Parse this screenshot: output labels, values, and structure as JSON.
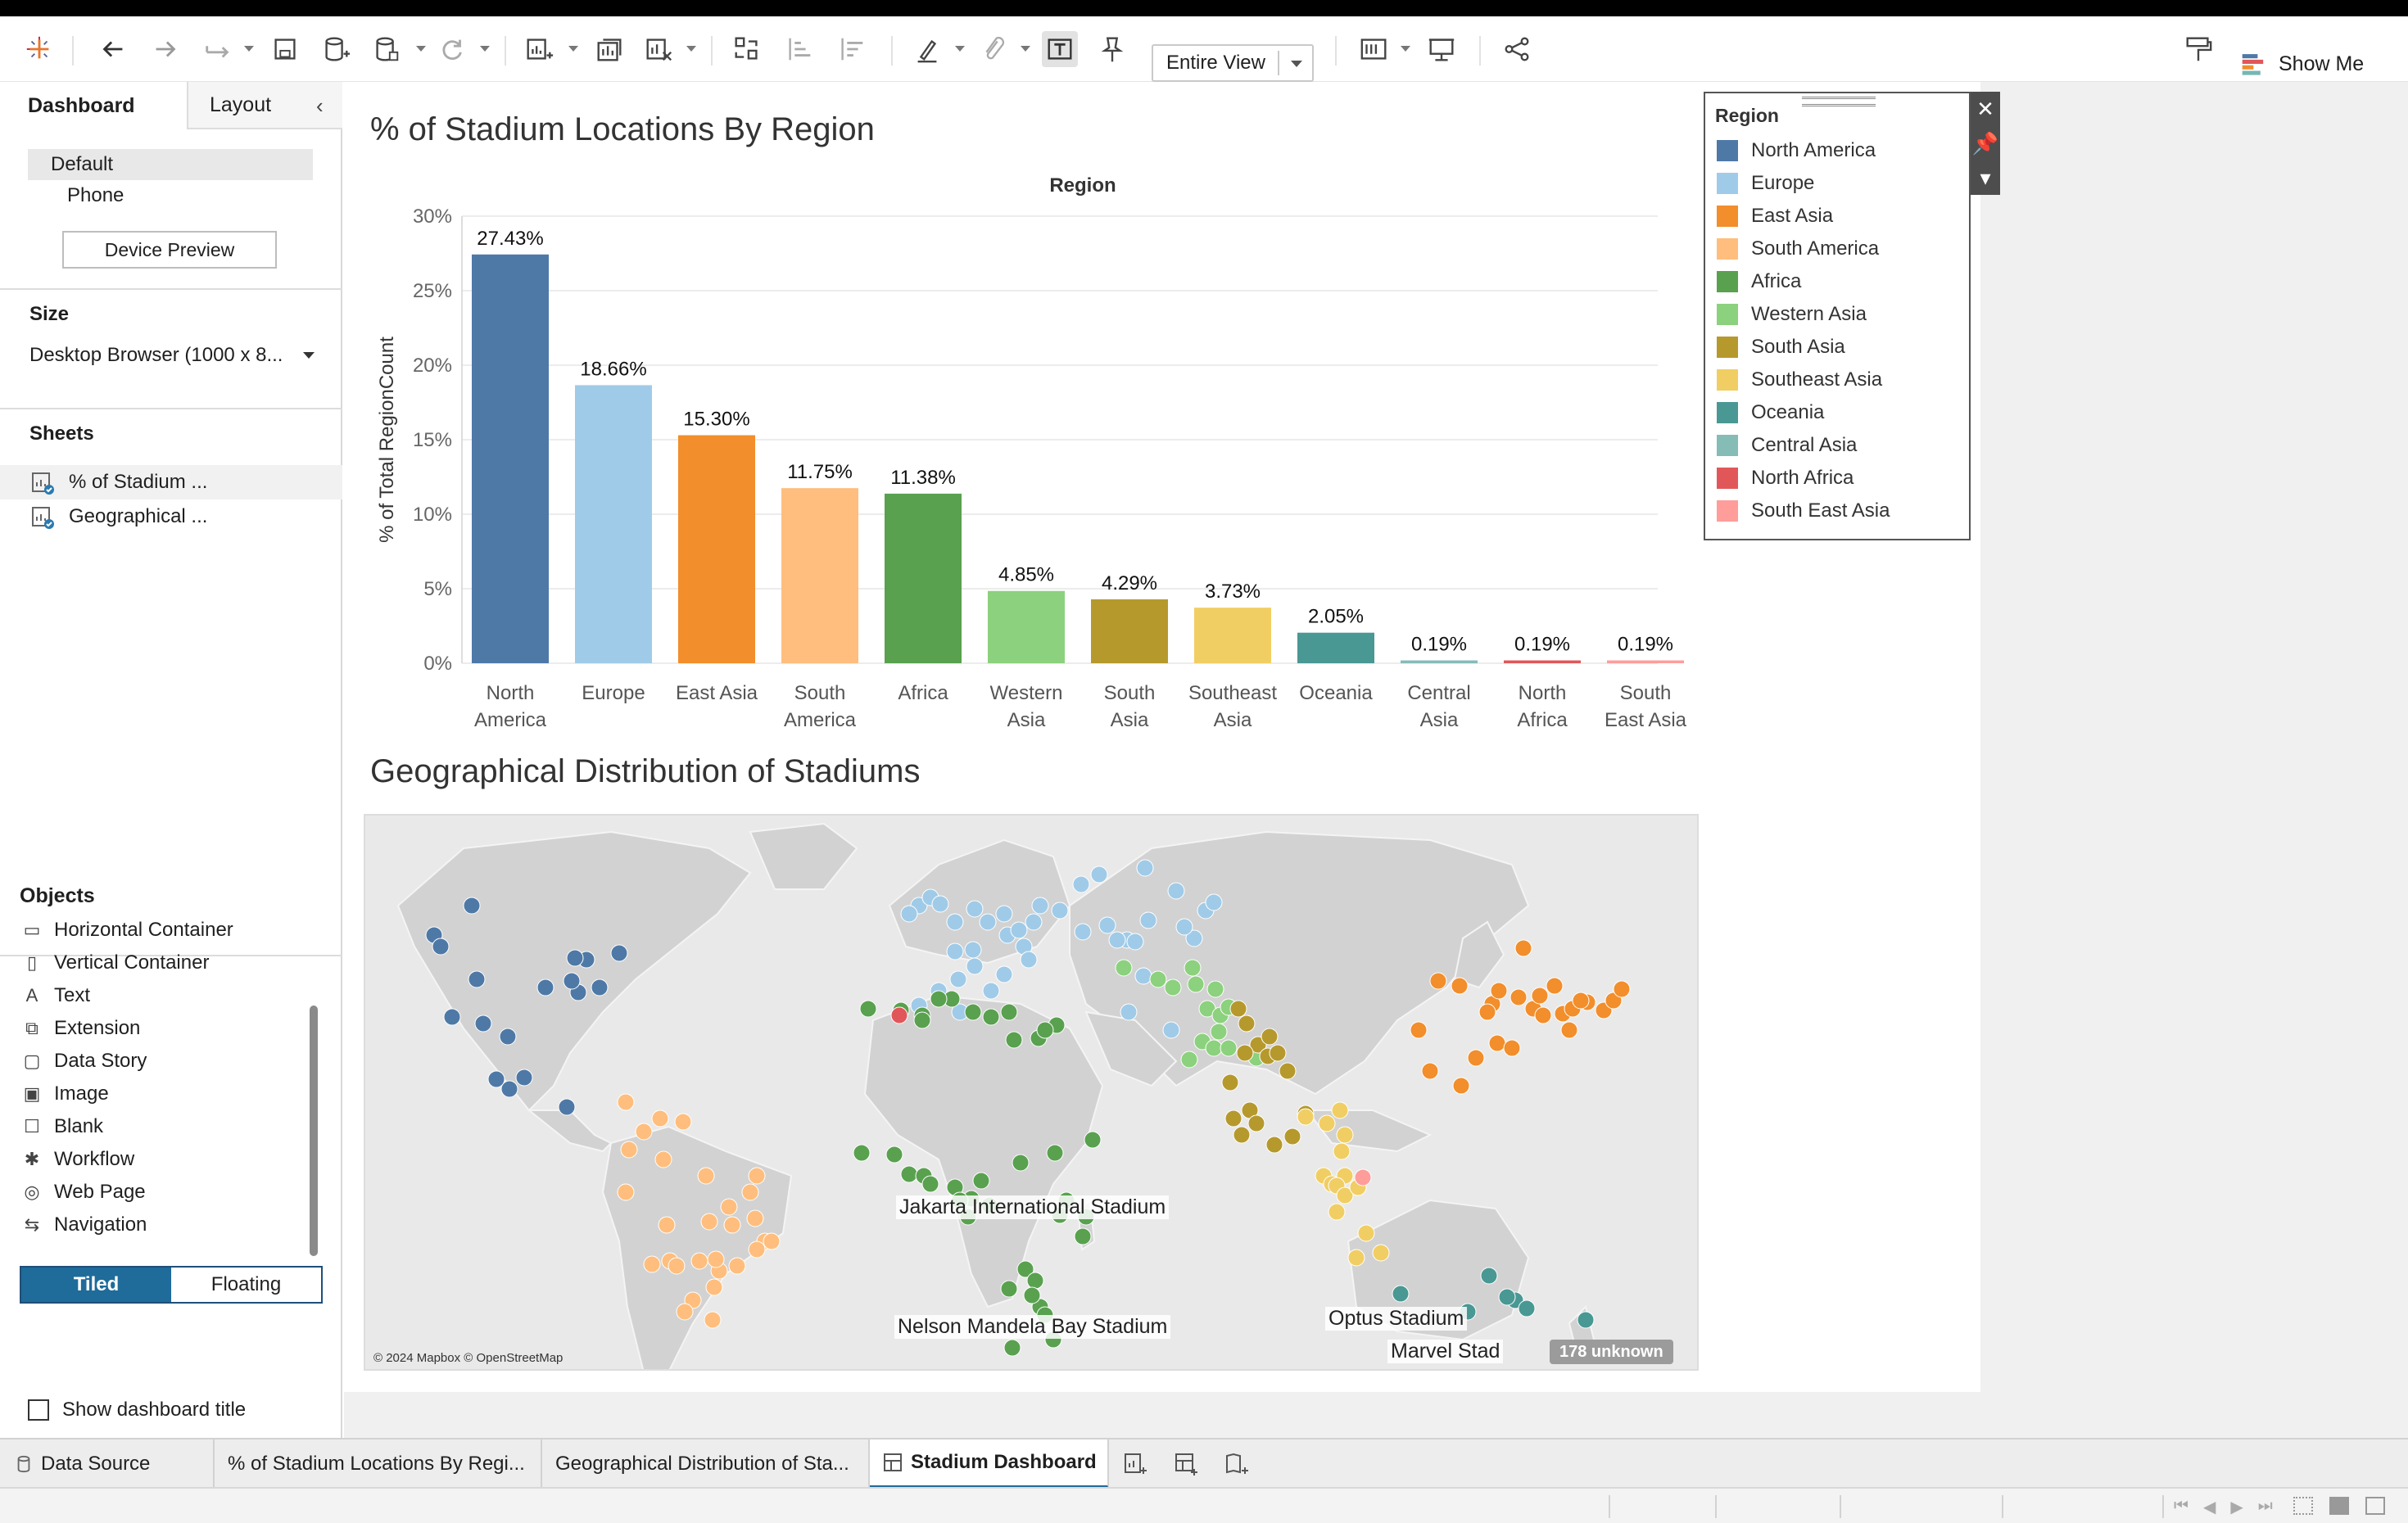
{
  "toolbar": {
    "view_select": "Entire View",
    "show_me": "Show Me"
  },
  "left_panel": {
    "tabs": {
      "dashboard": "Dashboard",
      "layout": "Layout"
    },
    "devices": [
      "Default",
      "Phone"
    ],
    "device_preview": "Device Preview",
    "size_title": "Size",
    "size_value": "Desktop Browser (1000 x 8...",
    "sheets_title": "Sheets",
    "sheets": [
      "% of Stadium ...",
      "Geographical ..."
    ],
    "objects_title": "Objects",
    "objects": [
      {
        "label": "Horizontal Container",
        "icon": "horizontal-container-icon"
      },
      {
        "label": "Vertical Container",
        "icon": "vertical-container-icon"
      },
      {
        "label": "Text",
        "icon": "text-icon"
      },
      {
        "label": "Extension",
        "icon": "extension-icon"
      },
      {
        "label": "Data Story",
        "icon": "data-story-icon"
      },
      {
        "label": "Image",
        "icon": "image-icon"
      },
      {
        "label": "Blank",
        "icon": "blank-icon"
      },
      {
        "label": "Workflow",
        "icon": "workflow-icon"
      },
      {
        "label": "Web Page",
        "icon": "web-page-icon"
      },
      {
        "label": "Navigation",
        "icon": "navigation-icon"
      }
    ],
    "tiled": "Tiled",
    "floating": "Floating",
    "show_title": "Show dashboard title"
  },
  "dashboard": {
    "chart_title": "% of Stadium Locations By Region",
    "map_title": "Geographical Distribution of Stadiums"
  },
  "chart_data": {
    "type": "bar",
    "title": "% of Stadium Locations By Region",
    "header": "Region",
    "ylabel": "% of Total RegionCount",
    "ylim": [
      0,
      30
    ],
    "yticks": [
      "0%",
      "5%",
      "10%",
      "15%",
      "20%",
      "25%",
      "30%"
    ],
    "categories": [
      "North America",
      "Europe",
      "East Asia",
      "South America",
      "Africa",
      "Western Asia",
      "South Asia",
      "Southeast Asia",
      "Oceania",
      "Central Asia",
      "North Africa",
      "South East Asia"
    ],
    "category_labels": [
      [
        "North",
        "America"
      ],
      [
        "Europe"
      ],
      [
        "East Asia"
      ],
      [
        "South",
        "America"
      ],
      [
        "Africa"
      ],
      [
        "Western",
        "Asia"
      ],
      [
        "South",
        "Asia"
      ],
      [
        "Southeast",
        "Asia"
      ],
      [
        "Oceania"
      ],
      [
        "Central",
        "Asia"
      ],
      [
        "North",
        "Africa"
      ],
      [
        "South",
        "East Asia"
      ]
    ],
    "values": [
      27.43,
      18.66,
      15.3,
      11.75,
      11.38,
      4.85,
      4.29,
      3.73,
      2.05,
      0.19,
      0.19,
      0.19
    ],
    "value_labels": [
      "27.43%",
      "18.66%",
      "15.30%",
      "11.75%",
      "11.38%",
      "4.85%",
      "4.29%",
      "3.73%",
      "2.05%",
      "0.19%",
      "0.19%",
      "0.19%"
    ],
    "colors": [
      "#4e79a7",
      "#a0cbe8",
      "#f28e2b",
      "#ffbe7d",
      "#59a14f",
      "#8cd17d",
      "#b6992d",
      "#f1ce63",
      "#499894",
      "#86bcb6",
      "#e15759",
      "#ff9d9a"
    ]
  },
  "legend": {
    "title": "Region",
    "items": [
      "North America",
      "Europe",
      "East Asia",
      "South America",
      "Africa",
      "Western Asia",
      "South Asia",
      "Southeast Asia",
      "Oceania",
      "Central Asia",
      "North Africa",
      "South East Asia"
    ]
  },
  "map": {
    "labels": [
      "Jakarta International Stadium",
      "Nelson Mandela Bay Stadium",
      "Optus Stadium",
      "Marvel Stad"
    ],
    "attribution": "© 2024 Mapbox © OpenStreetMap",
    "unknown": "178 unknown"
  },
  "bottom_tabs": {
    "data_source": "Data Source",
    "tabs": [
      "% of Stadium Locations By Regi...",
      "Geographical Distribution of Sta...",
      "Stadium Dashboard"
    ]
  }
}
